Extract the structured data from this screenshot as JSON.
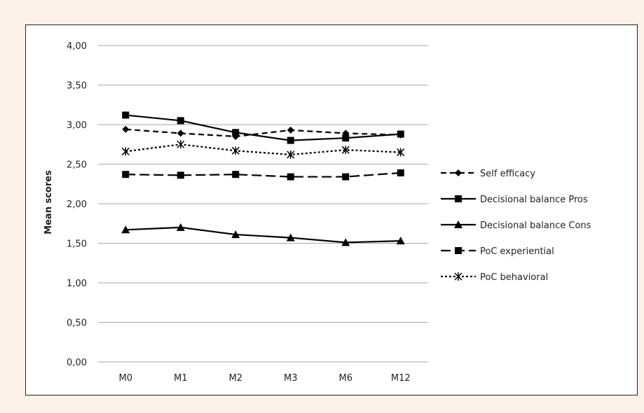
{
  "colors": {
    "page_bg": "#fdf0e6",
    "plot_bg": "#ffffff",
    "border": "#222222",
    "grid": "#a6a6a6",
    "series": "#000000"
  },
  "chart_data": {
    "type": "line",
    "title": "",
    "xlabel": "",
    "ylabel": "Mean scores",
    "categories": [
      "M0",
      "M1",
      "M2",
      "M3",
      "M6",
      "M12"
    ],
    "ylim": [
      0,
      4
    ],
    "yticks": [
      "0,00",
      "0,50",
      "1,00",
      "1,50",
      "2,00",
      "2,50",
      "3,00",
      "3,50",
      "4,00"
    ],
    "grid": true,
    "legend_position": "right",
    "series": [
      {
        "name": "Self efficacy",
        "values": [
          2.94,
          2.89,
          2.85,
          2.93,
          2.89,
          2.87
        ],
        "dash": "dashed",
        "marker": "diamond"
      },
      {
        "name": "Decisional balance Pros",
        "values": [
          3.12,
          3.05,
          2.9,
          2.8,
          2.83,
          2.88
        ],
        "dash": "solid",
        "marker": "square"
      },
      {
        "name": "Decisional balance Cons",
        "values": [
          1.67,
          1.7,
          1.61,
          1.57,
          1.51,
          1.53
        ],
        "dash": "solid",
        "marker": "triangle"
      },
      {
        "name": "PoC experiential",
        "values": [
          2.37,
          2.36,
          2.37,
          2.34,
          2.34,
          2.39
        ],
        "dash": "longdash",
        "marker": "square"
      },
      {
        "name": "PoC behavioral",
        "values": [
          2.66,
          2.75,
          2.67,
          2.62,
          2.68,
          2.65
        ],
        "dash": "dotted",
        "marker": "asterisk"
      }
    ]
  }
}
